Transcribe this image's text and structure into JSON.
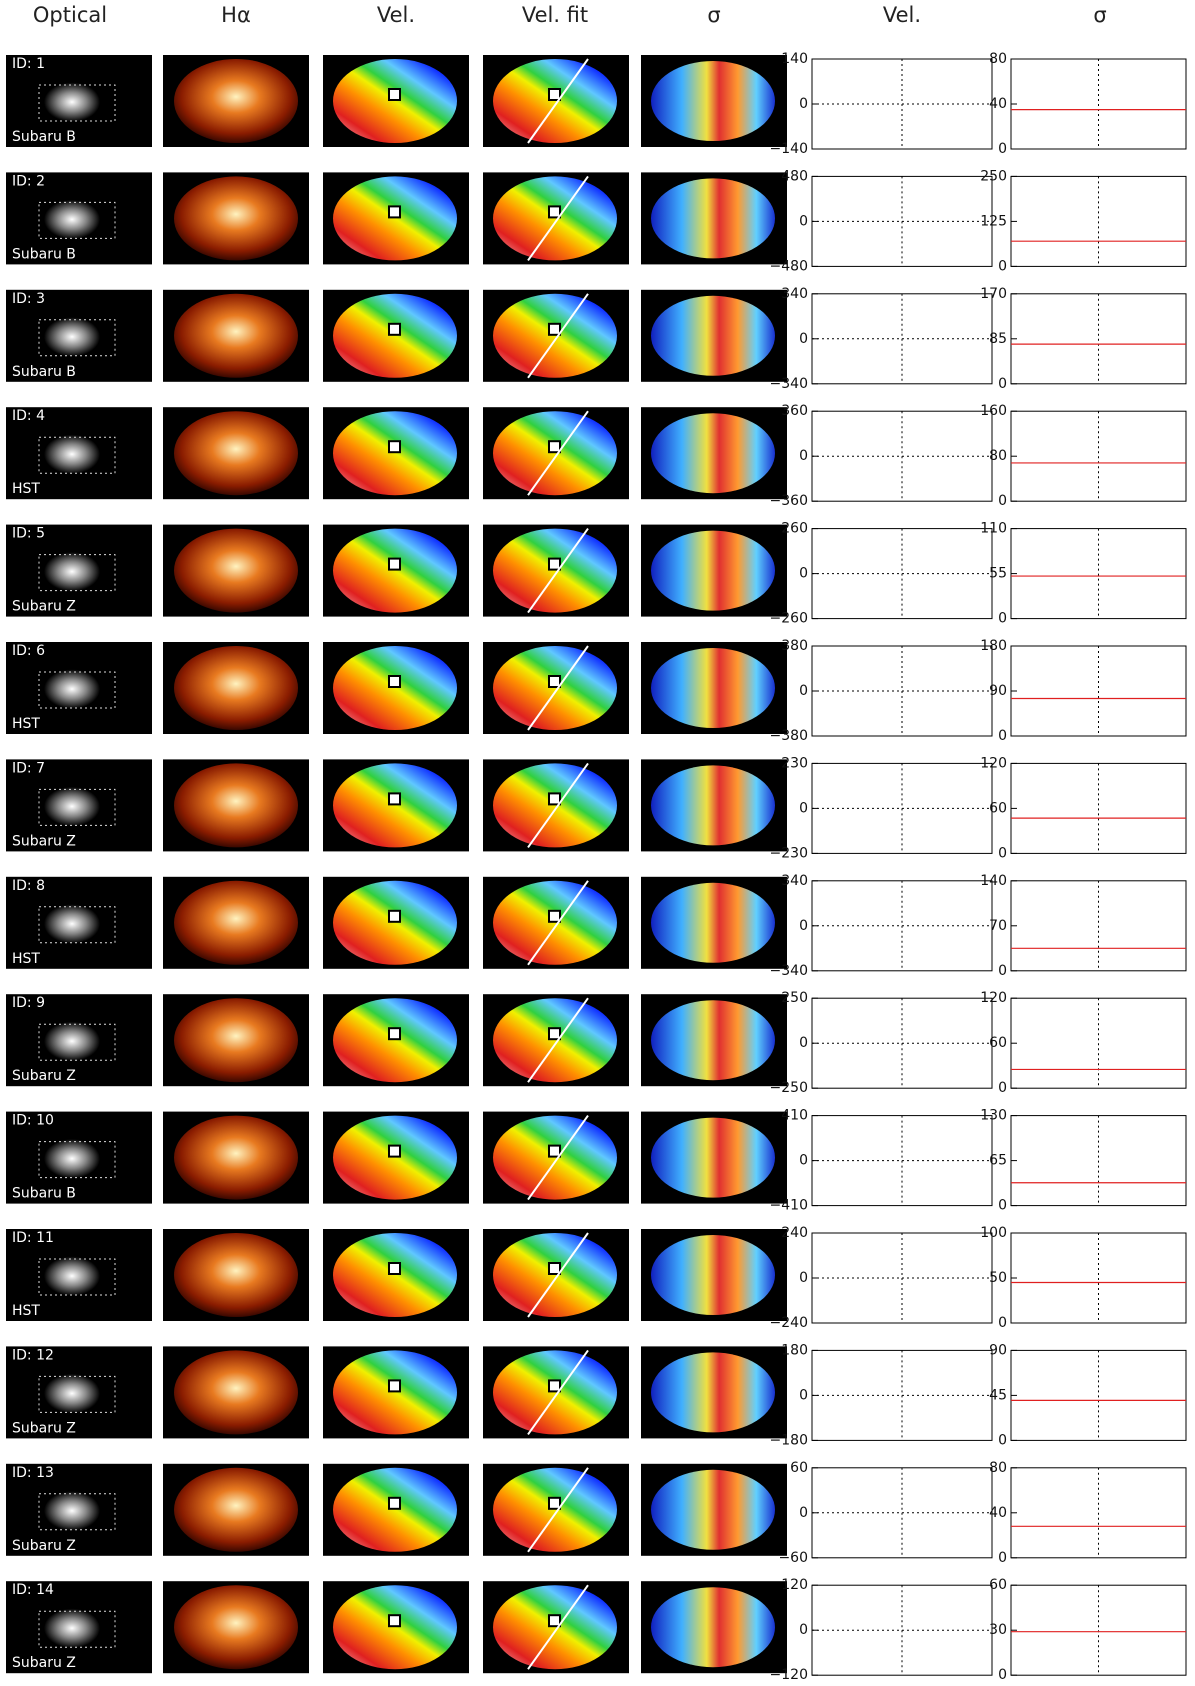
{
  "header": {
    "columns": [
      "Optical",
      "Hα",
      "Vel.",
      "Vel. fit",
      "σ",
      "Vel.",
      "σ"
    ]
  },
  "rows": [
    {
      "id": "ID: 1",
      "source": "Subaru B",
      "vel_ylim": [
        -140,
        140
      ],
      "vel_ticks": [
        140,
        0,
        {
          "value": -140,
          "label": "−140"
        }
      ],
      "sigma_ylim": [
        0,
        80
      ],
      "sigma_ticks": [
        80,
        40,
        0
      ],
      "sigma_level": 35
    },
    {
      "id": "ID: 2",
      "source": "Subaru B",
      "vel_ylim": [
        -480,
        480
      ],
      "vel_ticks": [
        480,
        0,
        {
          "value": -480,
          "label": "−480"
        }
      ],
      "sigma_ylim": [
        0,
        250
      ],
      "sigma_ticks": [
        250,
        125,
        0
      ],
      "sigma_level": 70
    },
    {
      "id": "ID: 3",
      "source": "Subaru B",
      "vel_ylim": [
        -340,
        340
      ],
      "vel_ticks": [
        340,
        0,
        {
          "value": -340,
          "label": "−340"
        }
      ],
      "sigma_ylim": [
        0,
        170
      ],
      "sigma_ticks": [
        170,
        85,
        0
      ],
      "sigma_level": 75
    },
    {
      "id": "ID: 4",
      "source": "HST",
      "vel_ylim": [
        -360,
        360
      ],
      "vel_ticks": [
        360,
        0,
        {
          "value": -360,
          "label": "−360"
        }
      ],
      "sigma_ylim": [
        0,
        160
      ],
      "sigma_ticks": [
        160,
        80,
        0
      ],
      "sigma_level": 68
    },
    {
      "id": "ID: 5",
      "source": "Subaru Z",
      "vel_ylim": [
        -260,
        260
      ],
      "vel_ticks": [
        260,
        0,
        {
          "value": -260,
          "label": "−260"
        }
      ],
      "sigma_ylim": [
        0,
        110
      ],
      "sigma_ticks": [
        110,
        55,
        0
      ],
      "sigma_level": 52
    },
    {
      "id": "ID: 6",
      "source": "HST",
      "vel_ylim": [
        -380,
        380
      ],
      "vel_ticks": [
        380,
        0,
        {
          "value": -380,
          "label": "−380"
        }
      ],
      "sigma_ylim": [
        0,
        180
      ],
      "sigma_ticks": [
        180,
        90,
        0
      ],
      "sigma_level": 75
    },
    {
      "id": "ID: 7",
      "source": "Subaru Z",
      "vel_ylim": [
        -230,
        230
      ],
      "vel_ticks": [
        230,
        0,
        {
          "value": -230,
          "label": "−230"
        }
      ],
      "sigma_ylim": [
        0,
        120
      ],
      "sigma_ticks": [
        120,
        60,
        0
      ],
      "sigma_level": 47
    },
    {
      "id": "ID: 8",
      "source": "HST",
      "vel_ylim": [
        -340,
        340
      ],
      "vel_ticks": [
        340,
        0,
        {
          "value": -340,
          "label": "−340"
        }
      ],
      "sigma_ylim": [
        0,
        140
      ],
      "sigma_ticks": [
        140,
        70,
        0
      ],
      "sigma_level": 35
    },
    {
      "id": "ID: 9",
      "source": "Subaru Z",
      "vel_ylim": [
        -250,
        250
      ],
      "vel_ticks": [
        250,
        0,
        {
          "value": -250,
          "label": "−250"
        }
      ],
      "sigma_ylim": [
        0,
        120
      ],
      "sigma_ticks": [
        120,
        60,
        0
      ],
      "sigma_level": 25
    },
    {
      "id": "ID: 10",
      "source": "Subaru B",
      "vel_ylim": [
        -410,
        410
      ],
      "vel_ticks": [
        410,
        0,
        {
          "value": -410,
          "label": "−410"
        }
      ],
      "sigma_ylim": [
        0,
        130
      ],
      "sigma_ticks": [
        130,
        65,
        0
      ],
      "sigma_level": 33
    },
    {
      "id": "ID: 11",
      "source": "HST",
      "vel_ylim": [
        -240,
        240
      ],
      "vel_ticks": [
        240,
        0,
        {
          "value": -240,
          "label": "−240"
        }
      ],
      "sigma_ylim": [
        0,
        100
      ],
      "sigma_ticks": [
        100,
        50,
        0
      ],
      "sigma_level": 45
    },
    {
      "id": "ID: 12",
      "source": "Subaru Z",
      "vel_ylim": [
        -180,
        180
      ],
      "vel_ticks": [
        180,
        0,
        {
          "value": -180,
          "label": "−180"
        }
      ],
      "sigma_ylim": [
        0,
        90
      ],
      "sigma_ticks": [
        90,
        45,
        0
      ],
      "sigma_level": 40
    },
    {
      "id": "ID: 13",
      "source": "Subaru Z",
      "vel_ylim": [
        -60,
        60
      ],
      "vel_ticks": [
        60,
        0,
        {
          "value": -60,
          "label": "−60"
        }
      ],
      "sigma_ylim": [
        0,
        80
      ],
      "sigma_ticks": [
        80,
        40,
        0
      ],
      "sigma_level": 28
    },
    {
      "id": "ID: 14",
      "source": "Subaru Z",
      "vel_ylim": [
        -120,
        120
      ],
      "vel_ticks": [
        120,
        0,
        {
          "value": -120,
          "label": "−120"
        }
      ],
      "sigma_ylim": [
        0,
        60
      ],
      "sigma_ticks": [
        60,
        30,
        0
      ],
      "sigma_level": 29
    }
  ]
}
